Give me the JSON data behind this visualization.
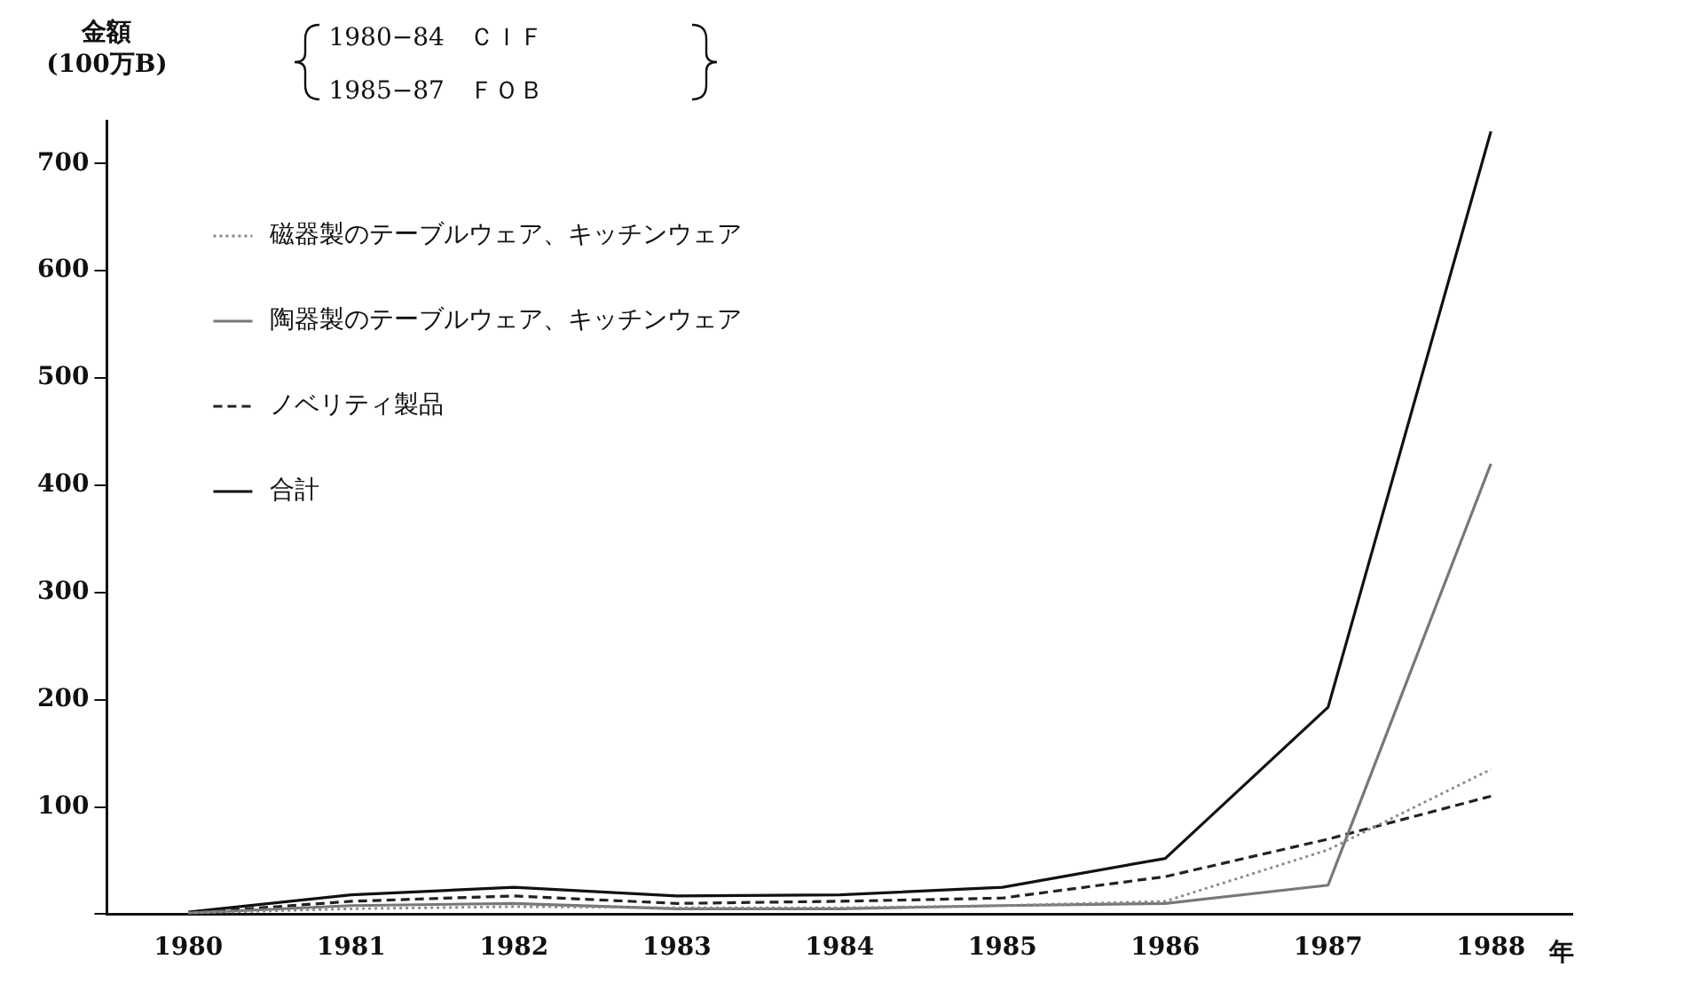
{
  "chart_data": {
    "type": "line",
    "ylabel": "金額\n(100万B)",
    "xlabel": "年",
    "categories": [
      "1980",
      "1981",
      "1982",
      "1983",
      "1984",
      "1985",
      "1986",
      "1987",
      "1988"
    ],
    "series": [
      {
        "name": "磁器製のテーブルウェア、キッチンウェア",
        "color": "#888888",
        "line_style": "dotted",
        "values": [
          1,
          5,
          7,
          6,
          6,
          8,
          12,
          60,
          135
        ]
      },
      {
        "name": "陶器製のテーブルウェア、キッチンウェア",
        "color": "#777777",
        "line_style": "solid",
        "values": [
          1,
          8,
          10,
          5,
          5,
          8,
          10,
          27,
          420
        ]
      },
      {
        "name": "ノベリティ製品",
        "color": "#222222",
        "line_style": "dashed",
        "values": [
          1,
          12,
          17,
          10,
          12,
          15,
          35,
          70,
          110
        ]
      },
      {
        "name": "合計",
        "color": "#111111",
        "line_style": "solid",
        "values": [
          2,
          18,
          25,
          17,
          18,
          25,
          52,
          193,
          730
        ]
      }
    ],
    "ylim": [
      0,
      740
    ],
    "yticks": [
      {
        "value": 0,
        "label": null
      },
      100,
      200,
      300,
      400,
      500,
      600,
      700
    ],
    "grid": false,
    "legend": "top left",
    "marker": "none",
    "annotations": [
      "1980−84　ＣＩＦ",
      "1985−87　ＦＯＢ"
    ]
  }
}
